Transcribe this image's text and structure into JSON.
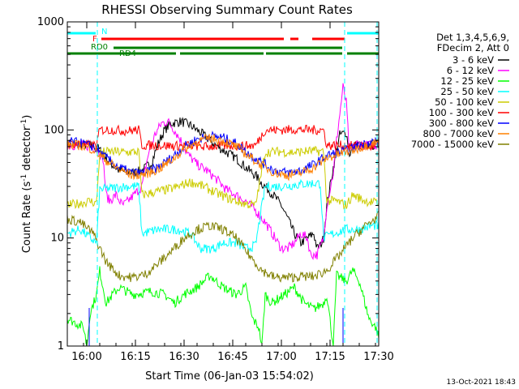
{
  "chart_data": {
    "type": "line",
    "title": "RHESSI Observing Summary Count Rates",
    "xlabel": "Start Time (06-Jan-03 15:54:02)",
    "ylabel_main": "Count Rate (s",
    "ylabel_exp": "-1",
    "ylabel_mid": " detector",
    "ylabel_exp2": "-1",
    "ylabel_end": ")",
    "yscale": "log",
    "ylim": [
      1,
      1000
    ],
    "xlim_minutes": [
      0,
      96
    ],
    "yticks": [
      {
        "label": "1",
        "value": 1
      },
      {
        "label": "10",
        "value": 10
      },
      {
        "label": "100",
        "value": 100
      },
      {
        "label": "1000",
        "value": 1000
      }
    ],
    "xticks": [
      {
        "label": "16:00",
        "value": 6
      },
      {
        "label": "16:15",
        "value": 21
      },
      {
        "label": "16:30",
        "value": 36
      },
      {
        "label": "16:45",
        "value": 51
      },
      {
        "label": "17:00",
        "value": 66
      },
      {
        "label": "17:15",
        "value": 81
      },
      {
        "label": "17:30",
        "value": 96
      }
    ],
    "legend_header": [
      "Det 1,3,4,5,6,9,",
      "FDecim 2, Att 0"
    ],
    "legend_position": "right",
    "series": [
      {
        "name": "3 - 6 keV",
        "color": "#000000",
        "points": [
          [
            0,
            72
          ],
          [
            5,
            73
          ],
          [
            9,
            70
          ],
          [
            11,
            60
          ],
          [
            13,
            50
          ],
          [
            16,
            42
          ],
          [
            20,
            40
          ],
          [
            23,
            42
          ],
          [
            26,
            50
          ],
          [
            28,
            75
          ],
          [
            30,
            100
          ],
          [
            32,
            115
          ],
          [
            35,
            120
          ],
          [
            38,
            110
          ],
          [
            42,
            90
          ],
          [
            45,
            75
          ],
          [
            48,
            65
          ],
          [
            52,
            55
          ],
          [
            55,
            45
          ],
          [
            58,
            38
          ],
          [
            60,
            32
          ],
          [
            62,
            28
          ],
          [
            64,
            24
          ],
          [
            66,
            20
          ],
          [
            68,
            15
          ],
          [
            70,
            11
          ],
          [
            72,
            9
          ],
          [
            74,
            10
          ],
          [
            76,
            11
          ],
          [
            77,
            8
          ],
          [
            78,
            8.5
          ],
          [
            79,
            10
          ],
          [
            80,
            20
          ],
          [
            82,
            45
          ],
          [
            84,
            90
          ],
          [
            86,
            95
          ],
          [
            87,
            60
          ],
          [
            89,
            75
          ],
          [
            91,
            70
          ],
          [
            93,
            72
          ],
          [
            96,
            73
          ]
        ]
      },
      {
        "name": "6 - 12 keV",
        "color": "#ff00ff",
        "points": [
          [
            0,
            72
          ],
          [
            5,
            72
          ],
          [
            9,
            68
          ],
          [
            11,
            55
          ],
          [
            12,
            25
          ],
          [
            13,
            22
          ],
          [
            15,
            25
          ],
          [
            17,
            20
          ],
          [
            18,
            21
          ],
          [
            20,
            24
          ],
          [
            23,
            30
          ],
          [
            25,
            60
          ],
          [
            27,
            90
          ],
          [
            29,
            115
          ],
          [
            31,
            120
          ],
          [
            33,
            100
          ],
          [
            35,
            80
          ],
          [
            37,
            60
          ],
          [
            40,
            48
          ],
          [
            43,
            42
          ],
          [
            46,
            35
          ],
          [
            49,
            28
          ],
          [
            52,
            25
          ],
          [
            55,
            22
          ],
          [
            58,
            18
          ],
          [
            61,
            14
          ],
          [
            64,
            10
          ],
          [
            66,
            8
          ],
          [
            68,
            8
          ],
          [
            70,
            9
          ],
          [
            72,
            11
          ],
          [
            74,
            10
          ],
          [
            75,
            7
          ],
          [
            77,
            7
          ],
          [
            79,
            10
          ],
          [
            80,
            20
          ],
          [
            82,
            40
          ],
          [
            83,
            80
          ],
          [
            84,
            140
          ],
          [
            85,
            250
          ],
          [
            86,
            180
          ],
          [
            87,
            60
          ],
          [
            89,
            75
          ],
          [
            92,
            72
          ],
          [
            96,
            73
          ]
        ]
      },
      {
        "name": "12 - 25 keV",
        "color": "#00ff00",
        "points": [
          [
            0,
            1.8
          ],
          [
            5,
            1.5
          ],
          [
            6,
            1
          ],
          [
            7,
            2
          ],
          [
            9,
            3
          ],
          [
            10,
            5
          ],
          [
            12,
            2.5
          ],
          [
            14,
            3
          ],
          [
            16,
            3.5
          ],
          [
            20,
            3
          ],
          [
            26,
            3.2
          ],
          [
            30,
            3
          ],
          [
            33,
            2.5
          ],
          [
            36,
            3
          ],
          [
            40,
            3.5
          ],
          [
            44,
            4.5
          ],
          [
            48,
            3.5
          ],
          [
            52,
            3
          ],
          [
            55,
            3.5
          ],
          [
            57,
            1.8
          ],
          [
            59,
            1.5
          ],
          [
            60,
            1
          ],
          [
            61,
            3
          ],
          [
            63,
            2.5
          ],
          [
            67,
            3
          ],
          [
            70,
            3.5
          ],
          [
            73,
            2.5
          ],
          [
            76,
            2.2
          ],
          [
            79,
            2.5
          ],
          [
            80,
            3
          ],
          [
            82,
            1
          ],
          [
            83,
            4.5
          ],
          [
            86,
            4
          ],
          [
            88,
            5
          ],
          [
            90,
            4
          ],
          [
            93,
            1.8
          ],
          [
            95,
            1.5
          ],
          [
            96,
            1.2
          ]
        ]
      },
      {
        "name": "25 - 50 keV",
        "color": "#00ffff",
        "points": [
          [
            0,
            11
          ],
          [
            4,
            12
          ],
          [
            7,
            10
          ],
          [
            9,
            9
          ],
          [
            10,
            28
          ],
          [
            14,
            29
          ],
          [
            18,
            30
          ],
          [
            22,
            30
          ],
          [
            23,
            11
          ],
          [
            28,
            12
          ],
          [
            34,
            12
          ],
          [
            38,
            11
          ],
          [
            41,
            8
          ],
          [
            45,
            8
          ],
          [
            48,
            9
          ],
          [
            52,
            9
          ],
          [
            55,
            8
          ],
          [
            58,
            8.5
          ],
          [
            61,
            30
          ],
          [
            65,
            30
          ],
          [
            70,
            31
          ],
          [
            75,
            32
          ],
          [
            78,
            32
          ],
          [
            79,
            10
          ],
          [
            82,
            11
          ],
          [
            86,
            12
          ],
          [
            90,
            12
          ],
          [
            94,
            13
          ],
          [
            96,
            13
          ]
        ]
      },
      {
        "name": "50 - 100 keV",
        "color": "#cccc00",
        "points": [
          [
            0,
            20
          ],
          [
            4,
            21
          ],
          [
            7,
            22
          ],
          [
            9,
            21
          ],
          [
            10,
            62
          ],
          [
            14,
            63
          ],
          [
            18,
            62
          ],
          [
            22,
            63
          ],
          [
            23,
            25
          ],
          [
            28,
            27
          ],
          [
            33,
            29
          ],
          [
            38,
            33
          ],
          [
            42,
            30
          ],
          [
            46,
            26
          ],
          [
            50,
            23
          ],
          [
            54,
            21
          ],
          [
            58,
            20
          ],
          [
            61,
            62
          ],
          [
            65,
            63
          ],
          [
            70,
            62
          ],
          [
            75,
            64
          ],
          [
            79,
            63
          ],
          [
            80,
            22
          ],
          [
            83,
            22
          ],
          [
            86,
            20
          ],
          [
            88,
            25
          ],
          [
            92,
            22
          ],
          [
            96,
            21
          ]
        ]
      },
      {
        "name": "100 - 300 keV",
        "color": "#ff0000",
        "points": [
          [
            0,
            75
          ],
          [
            4,
            74
          ],
          [
            7,
            72
          ],
          [
            9,
            72
          ],
          [
            10,
            100
          ],
          [
            14,
            100
          ],
          [
            18,
            98
          ],
          [
            22,
            100
          ],
          [
            23,
            72
          ],
          [
            28,
            72
          ],
          [
            33,
            71
          ],
          [
            38,
            72
          ],
          [
            42,
            70
          ],
          [
            46,
            71
          ],
          [
            50,
            72
          ],
          [
            54,
            71
          ],
          [
            58,
            72
          ],
          [
            61,
            100
          ],
          [
            65,
            100
          ],
          [
            70,
            101
          ],
          [
            75,
            100
          ],
          [
            79,
            100
          ],
          [
            80,
            72
          ],
          [
            84,
            72
          ],
          [
            88,
            71
          ],
          [
            92,
            70
          ],
          [
            96,
            70
          ]
        ]
      },
      {
        "name": "300 - 800 keV",
        "color": "#0000ff",
        "points": [
          [
            0,
            78
          ],
          [
            4,
            76
          ],
          [
            8,
            70
          ],
          [
            12,
            55
          ],
          [
            16,
            45
          ],
          [
            20,
            40
          ],
          [
            24,
            40
          ],
          [
            28,
            45
          ],
          [
            32,
            55
          ],
          [
            36,
            70
          ],
          [
            40,
            82
          ],
          [
            44,
            88
          ],
          [
            48,
            85
          ],
          [
            52,
            75
          ],
          [
            56,
            60
          ],
          [
            60,
            50
          ],
          [
            64,
            42
          ],
          [
            68,
            40
          ],
          [
            72,
            42
          ],
          [
            76,
            48
          ],
          [
            80,
            58
          ],
          [
            84,
            62
          ],
          [
            88,
            68
          ],
          [
            92,
            75
          ],
          [
            96,
            80
          ]
        ]
      },
      {
        "name": "800 - 7000 keV",
        "color": "#ff8000",
        "points": [
          [
            0,
            73
          ],
          [
            4,
            72
          ],
          [
            8,
            66
          ],
          [
            12,
            52
          ],
          [
            16,
            43
          ],
          [
            20,
            38
          ],
          [
            24,
            39
          ],
          [
            28,
            43
          ],
          [
            32,
            52
          ],
          [
            36,
            66
          ],
          [
            40,
            78
          ],
          [
            44,
            84
          ],
          [
            48,
            80
          ],
          [
            52,
            70
          ],
          [
            56,
            57
          ],
          [
            60,
            47
          ],
          [
            64,
            40
          ],
          [
            68,
            38
          ],
          [
            72,
            40
          ],
          [
            76,
            45
          ],
          [
            80,
            55
          ],
          [
            84,
            60
          ],
          [
            88,
            65
          ],
          [
            92,
            72
          ],
          [
            96,
            78
          ]
        ]
      },
      {
        "name": "7000 - 15000 keV",
        "color": "#808000",
        "points": [
          [
            0,
            15
          ],
          [
            4,
            14
          ],
          [
            8,
            11
          ],
          [
            12,
            6
          ],
          [
            16,
            4.5
          ],
          [
            20,
            4.3
          ],
          [
            24,
            4.6
          ],
          [
            28,
            5.8
          ],
          [
            32,
            7.5
          ],
          [
            36,
            10
          ],
          [
            40,
            12
          ],
          [
            44,
            13
          ],
          [
            48,
            12
          ],
          [
            52,
            10
          ],
          [
            56,
            7
          ],
          [
            60,
            5
          ],
          [
            64,
            4.3
          ],
          [
            68,
            4.3
          ],
          [
            72,
            4.4
          ],
          [
            76,
            4.4
          ],
          [
            80,
            5
          ],
          [
            84,
            7
          ],
          [
            88,
            10
          ],
          [
            92,
            13
          ],
          [
            96,
            16
          ]
        ]
      }
    ],
    "attenuator_labels": [
      {
        "label": "N",
        "color": "#00ffff"
      },
      {
        "label": "F",
        "color": "#ff0000"
      },
      {
        "label": "RD0",
        "color": "#008000"
      },
      {
        "label": "RD4",
        "color": "#008000"
      }
    ],
    "grid": false
  },
  "footer": {
    "timestamp": "13-Oct-2021 18:43"
  }
}
